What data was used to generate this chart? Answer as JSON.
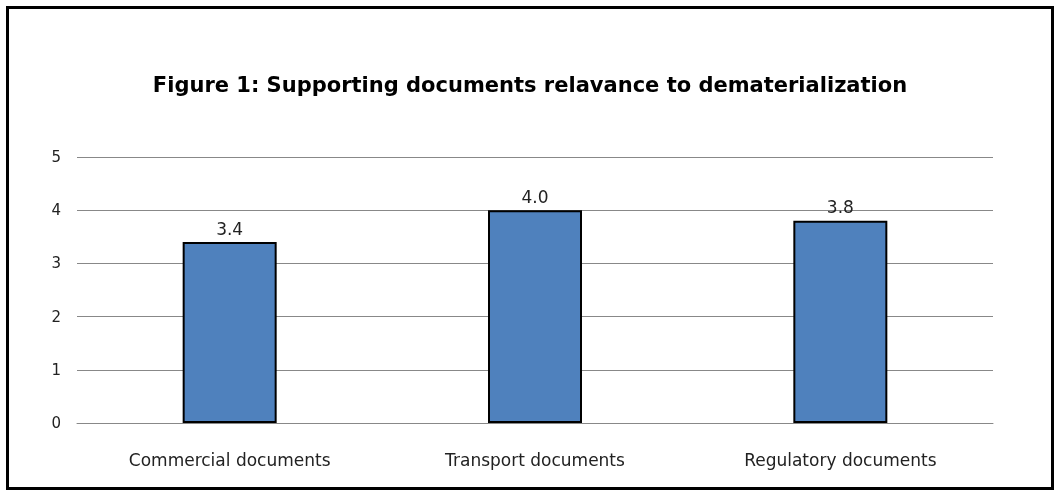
{
  "chart_data": {
    "type": "bar",
    "title": "Figure 1: Supporting documents relavance to dematerialization",
    "categories": [
      "Commercial documents",
      "Transport documents",
      "Regulatory documents"
    ],
    "values": [
      3.4,
      4.0,
      3.8
    ],
    "value_labels": [
      "3.4",
      "4.0",
      "3.8"
    ],
    "color": "#4f81bd",
    "ylim": [
      0,
      5
    ],
    "yticks": [
      0,
      1,
      2,
      3,
      4,
      5
    ],
    "grid": "y"
  }
}
